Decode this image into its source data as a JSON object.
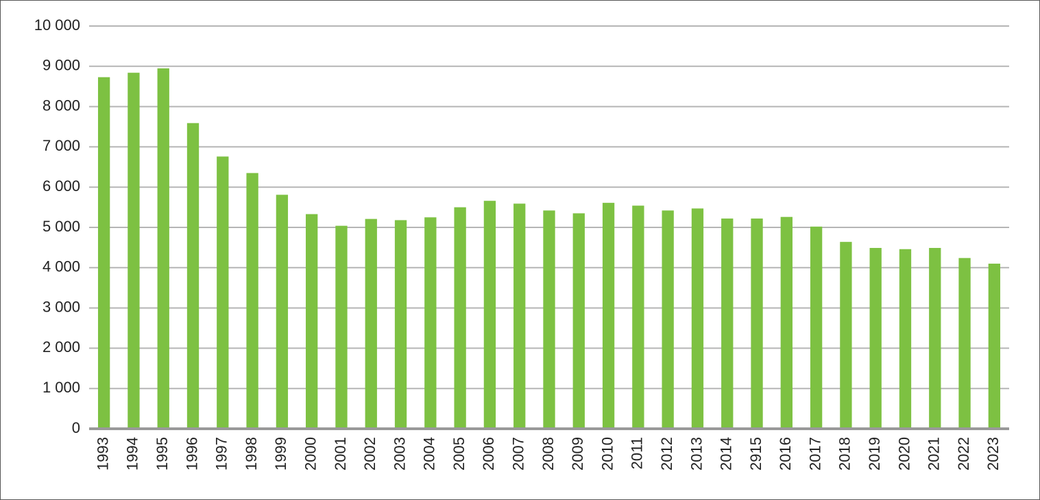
{
  "chart_data": {
    "type": "bar",
    "categories": [
      "1993",
      "1994",
      "1995",
      "1996",
      "1997",
      "1998",
      "1999",
      "2000",
      "2001",
      "2002",
      "2003",
      "2004",
      "2005",
      "2006",
      "2007",
      "2008",
      "2009",
      "2010",
      "2011",
      "2012",
      "2013",
      "2014",
      "2915",
      "2016",
      "2017",
      "2018",
      "2019",
      "2020",
      "2021",
      "2022",
      "2023"
    ],
    "values": [
      8730,
      8840,
      8950,
      7590,
      6760,
      6350,
      5810,
      5330,
      5040,
      5210,
      5180,
      5250,
      5500,
      5660,
      5590,
      5420,
      5350,
      5610,
      5540,
      5420,
      5470,
      5220,
      5220,
      5260,
      5020,
      4640,
      4490,
      4460,
      4490,
      4240,
      4100
    ],
    "color": "#7dc142",
    "ylim": [
      0,
      10000
    ],
    "yticks": [
      0,
      {
        "value": 1000,
        "label": "1 000"
      },
      {
        "value": 2000,
        "label": "2 000"
      },
      {
        "value": 3000,
        "label": "3 000"
      },
      {
        "value": 4000,
        "label": "4 000"
      },
      {
        "value": 5000,
        "label": "5 000"
      },
      {
        "value": 6000,
        "label": "6 000"
      },
      {
        "value": 7000,
        "label": "7 000"
      },
      {
        "value": 8000,
        "label": "8 000"
      },
      {
        "value": 9000,
        "label": "9 000"
      },
      {
        "value": 10000,
        "label": "10 000"
      }
    ],
    "grid": true
  }
}
